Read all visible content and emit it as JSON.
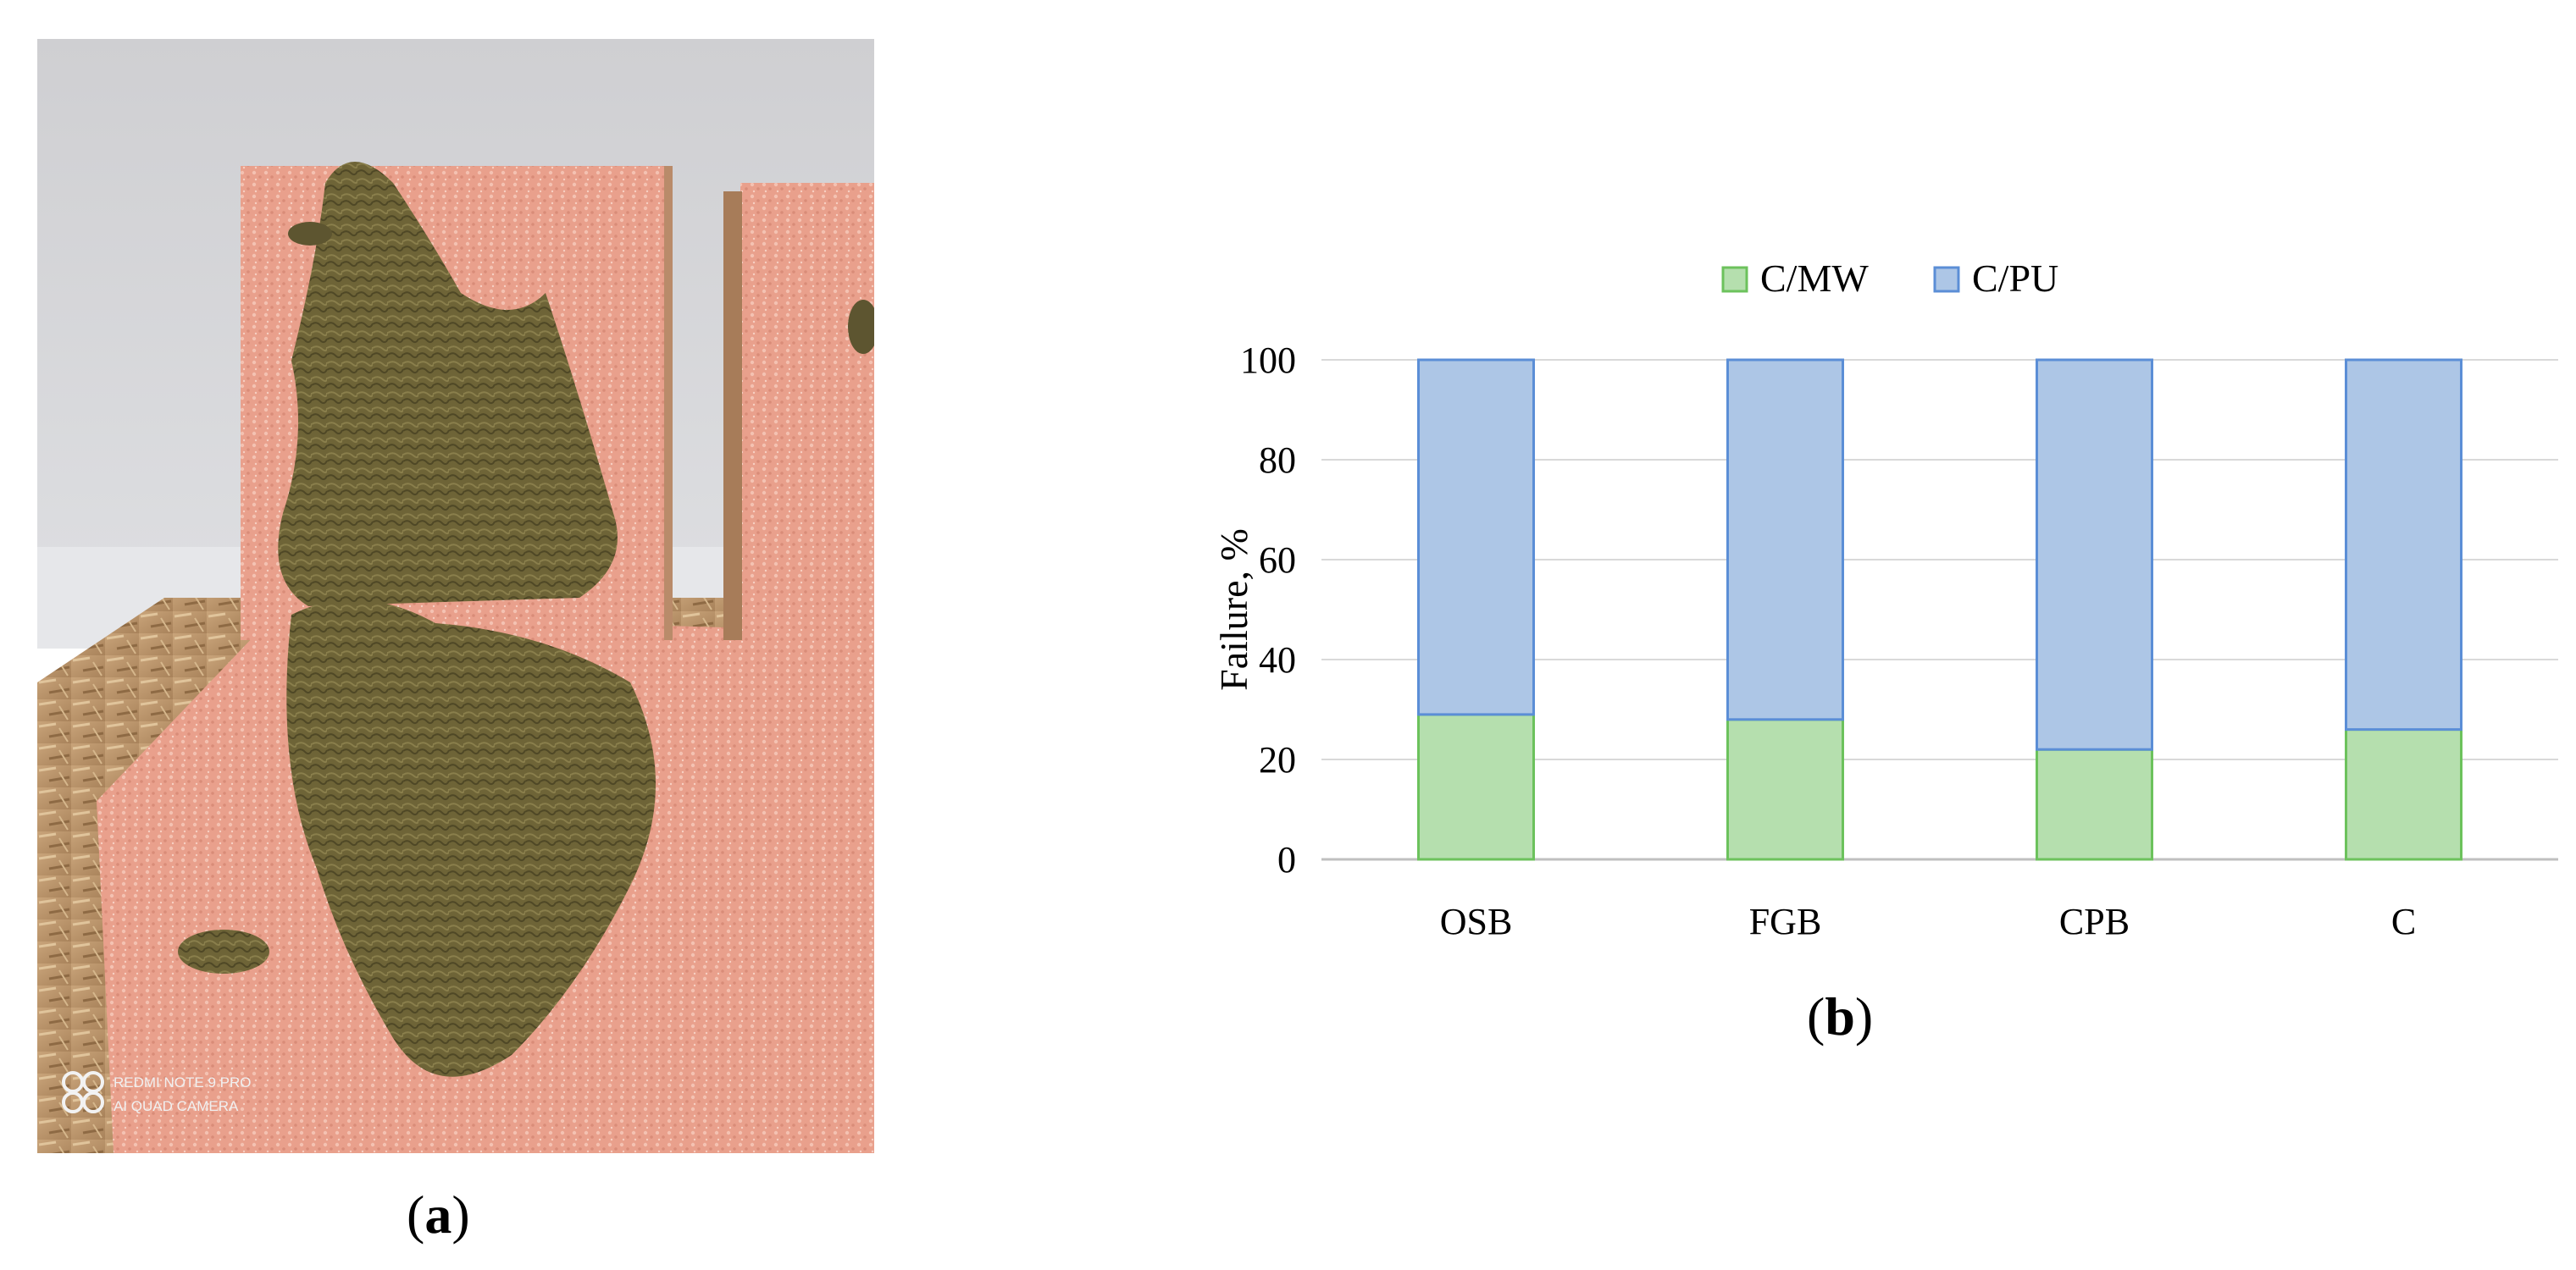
{
  "panels": {
    "a": {
      "open": "(",
      "letter": "a",
      "close": ")"
    },
    "b": {
      "open": "(",
      "letter": "b",
      "close": ")"
    }
  },
  "photo": {
    "watermark_line1": "REDMI NOTE 9 PRO",
    "watermark_line2": "AI QUAD CAMERA"
  },
  "colors": {
    "c_mw_fill": "#b5dfae",
    "c_mw_stroke": "#6cc25c",
    "c_pu_fill": "#adc6e6",
    "c_pu_stroke": "#5b8ed6",
    "grid": "#d9d9d9",
    "axis": "#bfbfbf",
    "text": "#000000"
  },
  "chart_data": {
    "type": "bar",
    "stacked": true,
    "categories": [
      "OSB",
      "FGB",
      "CPB",
      "C"
    ],
    "series": [
      {
        "name": "C/MW",
        "values": [
          29,
          28,
          22,
          26
        ]
      },
      {
        "name": "C/PU",
        "values": [
          71,
          72,
          78,
          74
        ]
      }
    ],
    "xlabel": "",
    "ylabel": "Failure, %",
    "ylim": [
      0,
      100
    ],
    "yticks": [
      "0",
      "20",
      "40",
      "60",
      "80",
      "100"
    ],
    "grid": true,
    "legend": "top"
  }
}
